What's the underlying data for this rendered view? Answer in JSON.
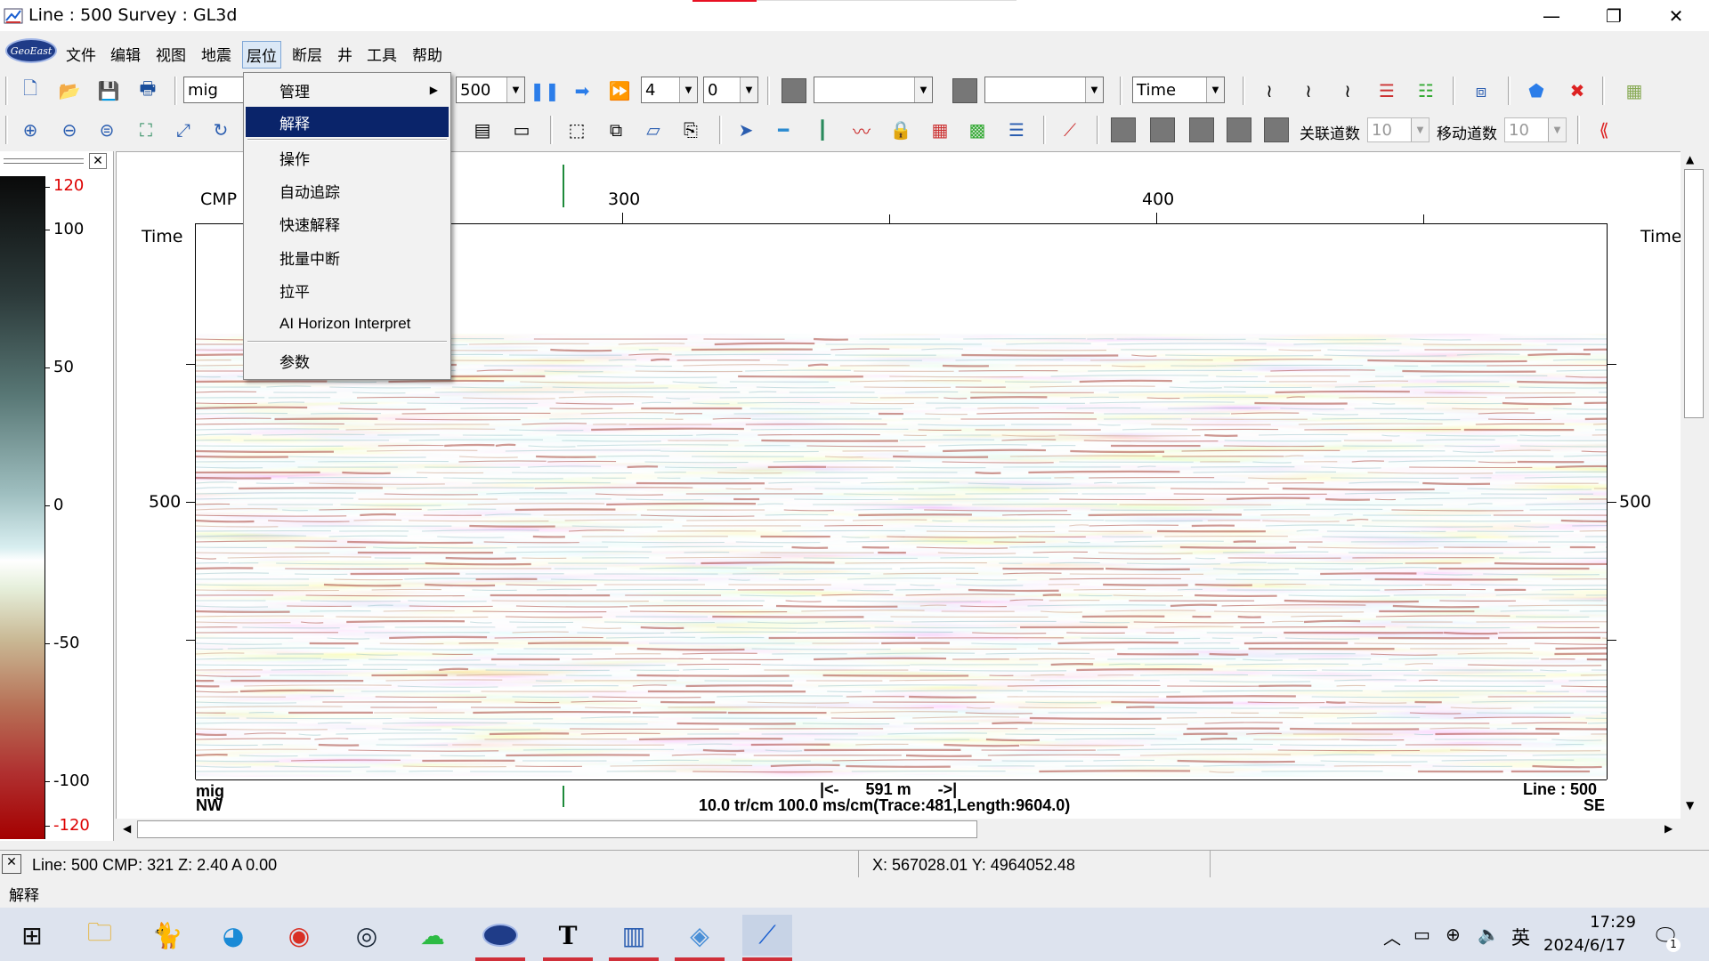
{
  "window": {
    "title": "Line : 500  Survey : GL3d",
    "minimize": "—",
    "restore": "❐",
    "close": "✕"
  },
  "menubar": {
    "logo": "GeoEast",
    "items": [
      "文件",
      "编辑",
      "视图",
      "地震",
      "层位",
      "断层",
      "井",
      "工具",
      "帮助"
    ]
  },
  "toolbar1": {
    "data_combo": "mig",
    "line_combo": "500",
    "step_combo": "4",
    "offset_combo": "0",
    "attr_combo1": "",
    "attr_combo2": "",
    "domain_combo": "Time"
  },
  "toolbar2": {
    "assoc_label": "关联道数",
    "assoc_value": "10",
    "move_label": "移动道数",
    "move_value": "10"
  },
  "dropdown": {
    "items": [
      "管理",
      "解释",
      "操作",
      "自动追踪",
      "快速解释",
      "批量中断",
      "拉平",
      "AI Horizon Interpret",
      "参数"
    ],
    "highlighted": "解释"
  },
  "colorbar": {
    "ticks": [
      "120",
      "100",
      "50",
      "0",
      "-50",
      "-100",
      "-120"
    ]
  },
  "plot": {
    "cmp_label": "CMP",
    "time_left": "Time",
    "time_right": "Time",
    "cmp_ticks": [
      "300",
      "400"
    ],
    "time_tick_left": "500",
    "time_tick_right": "500",
    "data_name": "mig",
    "dir_left": "NW",
    "dir_right": "SE",
    "scale_bar": "|<-      591 m      ->|",
    "scale_info": "10.0 tr/cm 100.0 ms/cm(Trace:481,Length:9604.0)",
    "line_label": "Line : 500"
  },
  "status": {
    "line_info": "Line:  500  CMP:  321  Z: 2.40  A  0.00",
    "xy_info": "X: 567028.01  Y: 4964052.48",
    "hint": "解释"
  },
  "taskbar": {
    "clock_time": "17:29",
    "clock_date": "2024/6/17",
    "ime": "英",
    "notify_count": "1"
  }
}
